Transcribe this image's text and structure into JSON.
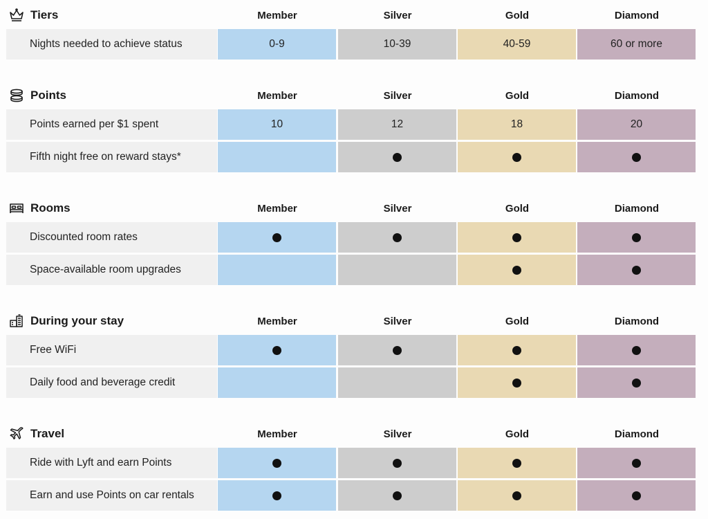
{
  "tiers_header": [
    "Member",
    "Silver",
    "Gold",
    "Diamond"
  ],
  "colors": {
    "member": "#b5d6f0",
    "silver": "#cdcdcd",
    "gold": "#e9d9b3",
    "diamond": "#c4aebc",
    "label_bg": "#f0f0f0"
  },
  "sections": [
    {
      "title": "Tiers",
      "icon": "crown-icon",
      "rows": [
        {
          "label": "Nights needed to achieve status",
          "values": [
            "0-9",
            "10-39",
            "40-59",
            "60 or more"
          ]
        }
      ]
    },
    {
      "title": "Points",
      "icon": "coins-icon",
      "rows": [
        {
          "label": "Points earned per $1 spent",
          "values": [
            "10",
            "12",
            "18",
            "20"
          ]
        },
        {
          "label": "Fifth night free on reward stays*",
          "values": [
            false,
            true,
            true,
            true
          ]
        }
      ]
    },
    {
      "title": "Rooms",
      "icon": "bed-icon",
      "rows": [
        {
          "label": "Discounted room rates",
          "values": [
            true,
            true,
            true,
            true
          ]
        },
        {
          "label": "Space-available room upgrades",
          "values": [
            false,
            false,
            true,
            true
          ]
        }
      ]
    },
    {
      "title": "During your stay",
      "icon": "hotel-building-icon",
      "rows": [
        {
          "label": "Free WiFi",
          "values": [
            true,
            true,
            true,
            true
          ]
        },
        {
          "label": "Daily food and beverage credit",
          "values": [
            false,
            false,
            true,
            true
          ]
        }
      ]
    },
    {
      "title": "Travel",
      "icon": "airplane-icon",
      "rows": [
        {
          "label": "Ride with Lyft and earn Points",
          "values": [
            true,
            true,
            true,
            true
          ]
        },
        {
          "label": "Earn and use Points on car rentals",
          "values": [
            true,
            true,
            true,
            true
          ]
        }
      ]
    }
  ]
}
